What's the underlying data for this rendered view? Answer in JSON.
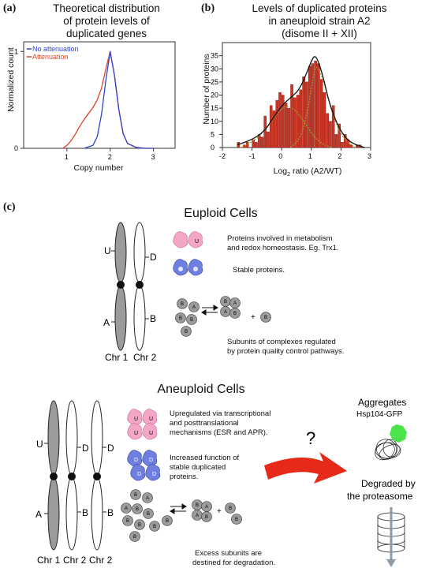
{
  "panel_a": {
    "letter": "(a)",
    "title_lines": [
      "Theoretical distribution",
      "of protein levels of",
      "duplicated genes"
    ],
    "legend": [
      "No attenuation",
      "Attenuation"
    ],
    "ylabel": "Normalized count",
    "xlabel": "Copy number",
    "colors": {
      "no_attenuation": "#3344cc",
      "attenuation": "#dd4422"
    }
  },
  "panel_b": {
    "letter": "(b)",
    "title_lines": [
      "Levels of duplicated proteins",
      "in aneuploid strain A2",
      "(disome II + XII)"
    ],
    "ylabel": "Number of  proteins",
    "xlabel_main": "Log",
    "xlabel_sub": "2",
    "xlabel_rest": " ratio (A2/WT)",
    "bar_color": "#cc3322"
  },
  "chart_data": [
    {
      "type": "line",
      "title": "Theoretical distribution of protein levels of duplicated genes",
      "xlabel": "Copy number",
      "ylabel": "Normalized count",
      "xlim": [
        0,
        3.5
      ],
      "ylim": [
        0,
        1.1
      ],
      "xticks": [
        "1",
        "2",
        "3"
      ],
      "yticks": [
        "0",
        "1"
      ],
      "legend_position": "top-left",
      "series": [
        {
          "name": "No attenuation",
          "color": "#3344cc",
          "x": [
            1.4,
            1.6,
            1.7,
            1.8,
            1.9,
            2.0,
            2.1,
            2.2,
            2.3,
            2.4,
            2.6,
            2.8,
            3.0
          ],
          "y": [
            0.0,
            0.03,
            0.12,
            0.35,
            0.7,
            1.0,
            0.75,
            0.4,
            0.15,
            0.05,
            0.01,
            0.0,
            0.0
          ]
        },
        {
          "name": "Attenuation",
          "color": "#dd4422",
          "x": [
            0.9,
            1.0,
            1.1,
            1.2,
            1.3,
            1.4,
            1.5,
            1.6,
            1.7,
            1.8,
            1.9,
            2.0,
            2.1,
            2.2,
            2.3,
            2.4,
            2.6,
            2.8,
            3.0
          ],
          "y": [
            0.0,
            0.03,
            0.08,
            0.15,
            0.23,
            0.3,
            0.36,
            0.42,
            0.5,
            0.62,
            0.82,
            1.0,
            0.75,
            0.4,
            0.15,
            0.05,
            0.01,
            0.0,
            0.0
          ]
        }
      ]
    },
    {
      "type": "bar",
      "title": "Levels of duplicated proteins in aneuploid strain A2 (disome II + XII)",
      "xlabel": "Log2 ratio (A2/WT)",
      "ylabel": "Number of  proteins",
      "xlim": [
        -2,
        3
      ],
      "ylim": [
        0,
        40
      ],
      "xticks": [
        "-2",
        "-1",
        "0",
        "1",
        "2",
        "3"
      ],
      "yticks": [
        "0",
        "5",
        "10",
        "15",
        "20",
        "25",
        "30",
        "35"
      ],
      "bar_width": 0.1,
      "x": [
        -1.45,
        -1.35,
        -1.25,
        -1.15,
        -1.05,
        -0.95,
        -0.85,
        -0.75,
        -0.65,
        -0.55,
        -0.45,
        -0.35,
        -0.25,
        -0.15,
        -0.05,
        0.05,
        0.15,
        0.25,
        0.35,
        0.45,
        0.55,
        0.65,
        0.75,
        0.85,
        0.95,
        1.05,
        1.15,
        1.25,
        1.35,
        1.45,
        1.55,
        1.65,
        1.75,
        1.85,
        1.95,
        2.05,
        2.15,
        2.25,
        2.35,
        2.45,
        2.55,
        2.65
      ],
      "values": [
        2,
        0,
        1,
        2,
        0,
        3,
        2,
        5,
        4,
        12,
        6,
        16,
        14,
        18,
        21,
        20,
        17,
        15,
        24,
        19,
        20,
        22,
        27,
        25,
        31,
        32,
        33,
        32,
        26,
        21,
        13,
        10,
        16,
        5,
        9,
        2,
        5,
        3,
        1,
        0,
        1,
        1
      ],
      "fit_total": {
        "x": [
          -1.5,
          -1.0,
          -0.6,
          -0.3,
          0.0,
          0.3,
          0.6,
          0.9,
          1.0,
          1.1,
          1.2,
          1.4,
          1.6,
          1.9,
          2.2,
          2.5,
          2.8
        ],
        "y": [
          1,
          3,
          6,
          11,
          16,
          19,
          22,
          30,
          33,
          35,
          34,
          27,
          17,
          8,
          3,
          1,
          0
        ]
      },
      "fit_component_1": {
        "x": [
          -1.4,
          -1.0,
          -0.6,
          -0.2,
          0.0,
          0.2,
          0.5,
          0.8,
          1.1,
          1.4,
          1.7
        ],
        "y": [
          0,
          2,
          6,
          12,
          15,
          16,
          14,
          9,
          4,
          1,
          0
        ]
      },
      "fit_component_2": {
        "x": [
          0.3,
          0.6,
          0.8,
          1.0,
          1.1,
          1.2,
          1.4,
          1.6,
          1.9,
          2.2,
          2.5
        ],
        "y": [
          0,
          3,
          10,
          22,
          30,
          31,
          26,
          17,
          7,
          2,
          0
        ]
      }
    }
  ],
  "panel_c": {
    "letter": "(c)",
    "euploid": {
      "title": "Euploid Cells",
      "chromosome_labels": [
        "Chr 1",
        "Chr 2"
      ],
      "locus_labels": {
        "U": "U",
        "D": "D",
        "A": "A",
        "B": "B"
      },
      "desc_metabolism": [
        "Proteins involved in metabolism",
        "and redox homeostasis. Eg. Trx1."
      ],
      "desc_stable": [
        "Stable proteins."
      ],
      "desc_complex": [
        "Subunits of complexes regulated",
        "by protein quality control pathways."
      ]
    },
    "aneuploid": {
      "title": "Aneuploid Cells",
      "chromosome_labels": [
        "Chr 1",
        "Chr 2",
        "Chr 2"
      ],
      "desc_upregulated": [
        "Upregulated via transcriptional",
        "and posttranslational",
        "mechanisms (ESR and APR)."
      ],
      "desc_stable": [
        "Increased function of",
        "stable duplicated",
        "proteins."
      ],
      "desc_excess": [
        "Excess subunits are",
        "destined for degradation."
      ],
      "question": "?",
      "aggregates": "Aggregates",
      "hsp": "Hsp104-GFP",
      "degraded": [
        "Degraded by",
        "the proteasome"
      ]
    },
    "protein_letters": {
      "U": "U",
      "D": "D",
      "A": "A",
      "B": "B",
      "plus": "+"
    },
    "colors": {
      "pink": "#f3a6c6",
      "blue": "#6f7fe0",
      "gray": "#9b9b9b",
      "red": "#e52a1a",
      "green": "#4de34d"
    }
  }
}
